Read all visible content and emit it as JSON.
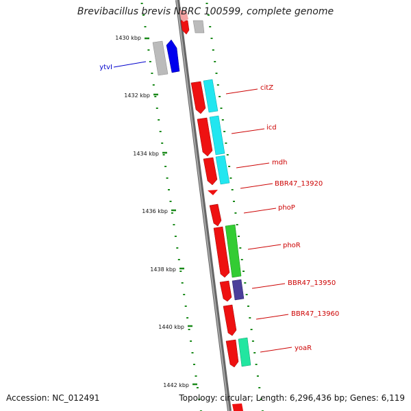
{
  "title": "Brevibacillus brevis NBRC 100599, complete genome",
  "accession": "Accession: NC_012491",
  "topology": "Topology: circular; Length: 6,296,436 bp; Genes: 6,119",
  "colors": {
    "background": "#ffffff",
    "backbone": "#888888",
    "tick": "#1a8a1a",
    "label_red": "#cc0000",
    "label_blue": "#0000cc"
  },
  "ticks": [
    {
      "label": "1430 kbp"
    },
    {
      "label": "1432 kbp"
    },
    {
      "label": "1434 kbp"
    },
    {
      "label": "1436 kbp"
    },
    {
      "label": "1438 kbp"
    },
    {
      "label": "1440 kbp"
    },
    {
      "label": "1442 kbp"
    }
  ],
  "gene_labels": [
    {
      "name": "ytvI",
      "color": "#0000cc"
    },
    {
      "name": "citZ",
      "color": "#cc0000"
    },
    {
      "name": "icd",
      "color": "#cc0000"
    },
    {
      "name": "mdh",
      "color": "#cc0000"
    },
    {
      "name": "BBR47_13920",
      "color": "#cc0000"
    },
    {
      "name": "phoP",
      "color": "#cc0000"
    },
    {
      "name": "phoR",
      "color": "#cc0000"
    },
    {
      "name": "BBR47_13950",
      "color": "#cc0000"
    },
    {
      "name": "BBR47_13960",
      "color": "#cc0000"
    },
    {
      "name": "yoaR",
      "color": "#cc0000"
    }
  ]
}
